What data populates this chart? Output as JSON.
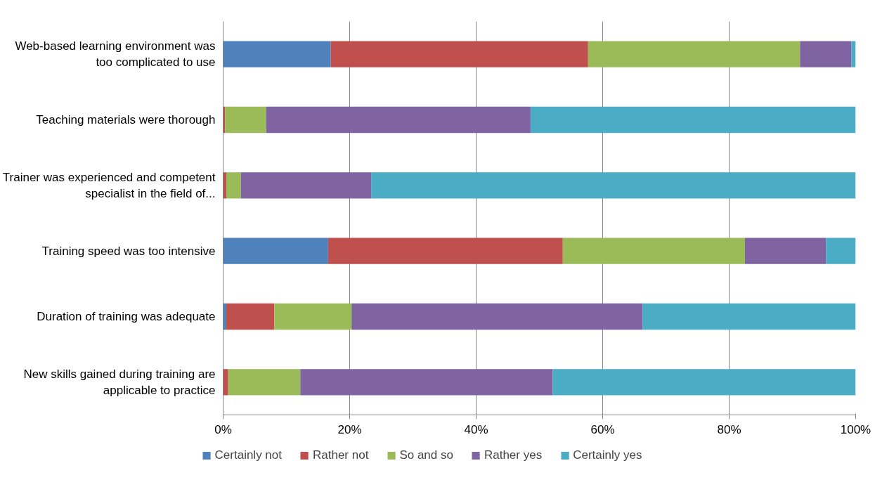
{
  "chart_data": {
    "type": "bar",
    "orientation": "horizontal",
    "stacked": true,
    "categories": [
      "Web-based learning environment was too complicated to use",
      "Teaching materials were thorough",
      "Trainer was experienced and competent specialist in the field of...",
      "Training speed was too intensive",
      "Duration of training was adequate",
      "New skills gained during training are applicable to practice"
    ],
    "series": [
      {
        "name": "Certainly not",
        "color": "#4f81bd",
        "values": [
          17.0,
          0,
          0,
          16.6,
          0.5,
          0
        ]
      },
      {
        "name": "Rather not",
        "color": "#c0504d",
        "values": [
          40.7,
          0.3,
          0.5,
          37.1,
          7.6,
          0.8
        ]
      },
      {
        "name": "So and so",
        "color": "#9bbb59",
        "values": [
          33.5,
          6.5,
          2.3,
          28.8,
          12.2,
          11.4
        ]
      },
      {
        "name": "Rather yes",
        "color": "#8064a2",
        "values": [
          8.1,
          41.8,
          20.6,
          12.8,
          46.0,
          39.9
        ]
      },
      {
        "name": "Certainly yes",
        "color": "#4bacc6",
        "values": [
          0.7,
          51.4,
          76.6,
          4.7,
          33.7,
          47.9
        ]
      }
    ],
    "xlim": [
      0,
      100
    ],
    "xticks": [
      {
        "value": 0,
        "label": "0%"
      },
      {
        "value": 20,
        "label": "20%"
      },
      {
        "value": 40,
        "label": "40%"
      },
      {
        "value": 60,
        "label": "60%"
      },
      {
        "value": 80,
        "label": "80%"
      },
      {
        "value": 100,
        "label": "100%"
      }
    ],
    "grid": "x",
    "legend": "bottom"
  }
}
